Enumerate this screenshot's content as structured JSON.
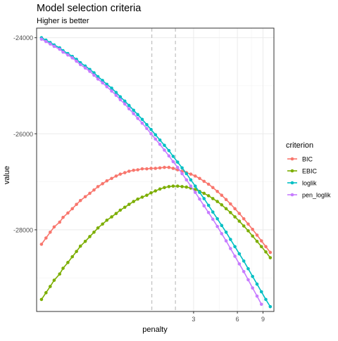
{
  "chart_data": {
    "type": "line",
    "title": "Model selection criteria",
    "subtitle": "Higher is better",
    "xlabel": "penalty",
    "ylabel": "value",
    "x_scale": "log10",
    "xlim": [
      0.25,
      10.7
    ],
    "ylim": [
      -29700,
      -23800
    ],
    "x_ticks": [
      3,
      6,
      9
    ],
    "y_ticks": [
      -24000,
      -26000,
      -28000
    ],
    "y_tick_labels": [
      "-24000",
      "-26000",
      "-28000"
    ],
    "vlines": [
      1.55,
      2.25
    ],
    "grid": true,
    "legend": {
      "title": "criterion",
      "position": "right"
    },
    "x": [
      0.27,
      0.29,
      0.31,
      0.33,
      0.36,
      0.38,
      0.41,
      0.44,
      0.47,
      0.5,
      0.54,
      0.58,
      0.62,
      0.66,
      0.71,
      0.76,
      0.82,
      0.88,
      0.94,
      1.01,
      1.08,
      1.16,
      1.24,
      1.33,
      1.43,
      1.53,
      1.64,
      1.76,
      1.89,
      2.03,
      2.17,
      2.33,
      2.5,
      2.68,
      2.87,
      3.08,
      3.3,
      3.54,
      3.8,
      4.07,
      4.37,
      4.68,
      5.02,
      5.38,
      5.77,
      6.19,
      6.64,
      7.12,
      7.63,
      8.19,
      8.78,
      9.41,
      10.1
    ],
    "series": [
      {
        "name": "BIC",
        "color": "#F8766D",
        "values": [
          -28300,
          -28170,
          -28050,
          -27940,
          -27840,
          -27740,
          -27650,
          -27560,
          -27470,
          -27390,
          -27310,
          -27240,
          -27170,
          -27100,
          -27040,
          -26980,
          -26930,
          -26880,
          -26840,
          -26810,
          -26780,
          -26760,
          -26750,
          -26730,
          -26730,
          -26720,
          -26720,
          -26710,
          -26700,
          -26700,
          -26720,
          -26750,
          -26780,
          -26810,
          -26840,
          -26880,
          -26930,
          -26990,
          -27050,
          -27120,
          -27200,
          -27280,
          -27370,
          -27460,
          -27560,
          -27660,
          -27770,
          -27880,
          -27990,
          -28110,
          -28230,
          -28350,
          -28470
        ]
      },
      {
        "name": "EBIC",
        "color": "#7CAE00",
        "values": [
          -29450,
          -29310,
          -29180,
          -29050,
          -28920,
          -28800,
          -28680,
          -28560,
          -28450,
          -28340,
          -28240,
          -28140,
          -28050,
          -27960,
          -27880,
          -27800,
          -27730,
          -27660,
          -27590,
          -27530,
          -27470,
          -27410,
          -27360,
          -27320,
          -27280,
          -27230,
          -27190,
          -27150,
          -27120,
          -27100,
          -27090,
          -27090,
          -27100,
          -27110,
          -27130,
          -27160,
          -27200,
          -27240,
          -27290,
          -27350,
          -27410,
          -27480,
          -27560,
          -27640,
          -27730,
          -27820,
          -27920,
          -28020,
          -28130,
          -28240,
          -28350,
          -28460,
          -28580
        ]
      },
      {
        "name": "loglik",
        "color": "#00BFC4",
        "values": [
          -24000,
          -24050,
          -24100,
          -24150,
          -24210,
          -24270,
          -24330,
          -24390,
          -24450,
          -24520,
          -24590,
          -24660,
          -24730,
          -24810,
          -24890,
          -24970,
          -25050,
          -25140,
          -25230,
          -25320,
          -25410,
          -25510,
          -25600,
          -25700,
          -25810,
          -25910,
          -26020,
          -26130,
          -26240,
          -26350,
          -26470,
          -26590,
          -26710,
          -26830,
          -26960,
          -27090,
          -27220,
          -27350,
          -27490,
          -27630,
          -27770,
          -27910,
          -28050,
          -28200,
          -28350,
          -28500,
          -28650,
          -28810,
          -28970,
          -29130,
          -29290,
          -29450,
          -29600
        ]
      },
      {
        "name": "pen_loglik",
        "color": "#C77CFF",
        "values": [
          -24030,
          -24080,
          -24130,
          -24180,
          -24240,
          -24300,
          -24360,
          -24420,
          -24490,
          -24560,
          -24630,
          -24700,
          -24780,
          -24860,
          -24940,
          -25020,
          -25110,
          -25200,
          -25290,
          -25380,
          -25480,
          -25580,
          -25680,
          -25780,
          -25890,
          -26000,
          -26110,
          -26220,
          -26340,
          -26460,
          -26580,
          -26700,
          -26830,
          -26960,
          -27090,
          -27220,
          -27360,
          -27500,
          -27640,
          -27780,
          -27930,
          -28080,
          -28230,
          -28390,
          -28550,
          -28710,
          -28870,
          -29040,
          -29210,
          -29380,
          -29550,
          -29720,
          -29890
        ]
      }
    ]
  }
}
